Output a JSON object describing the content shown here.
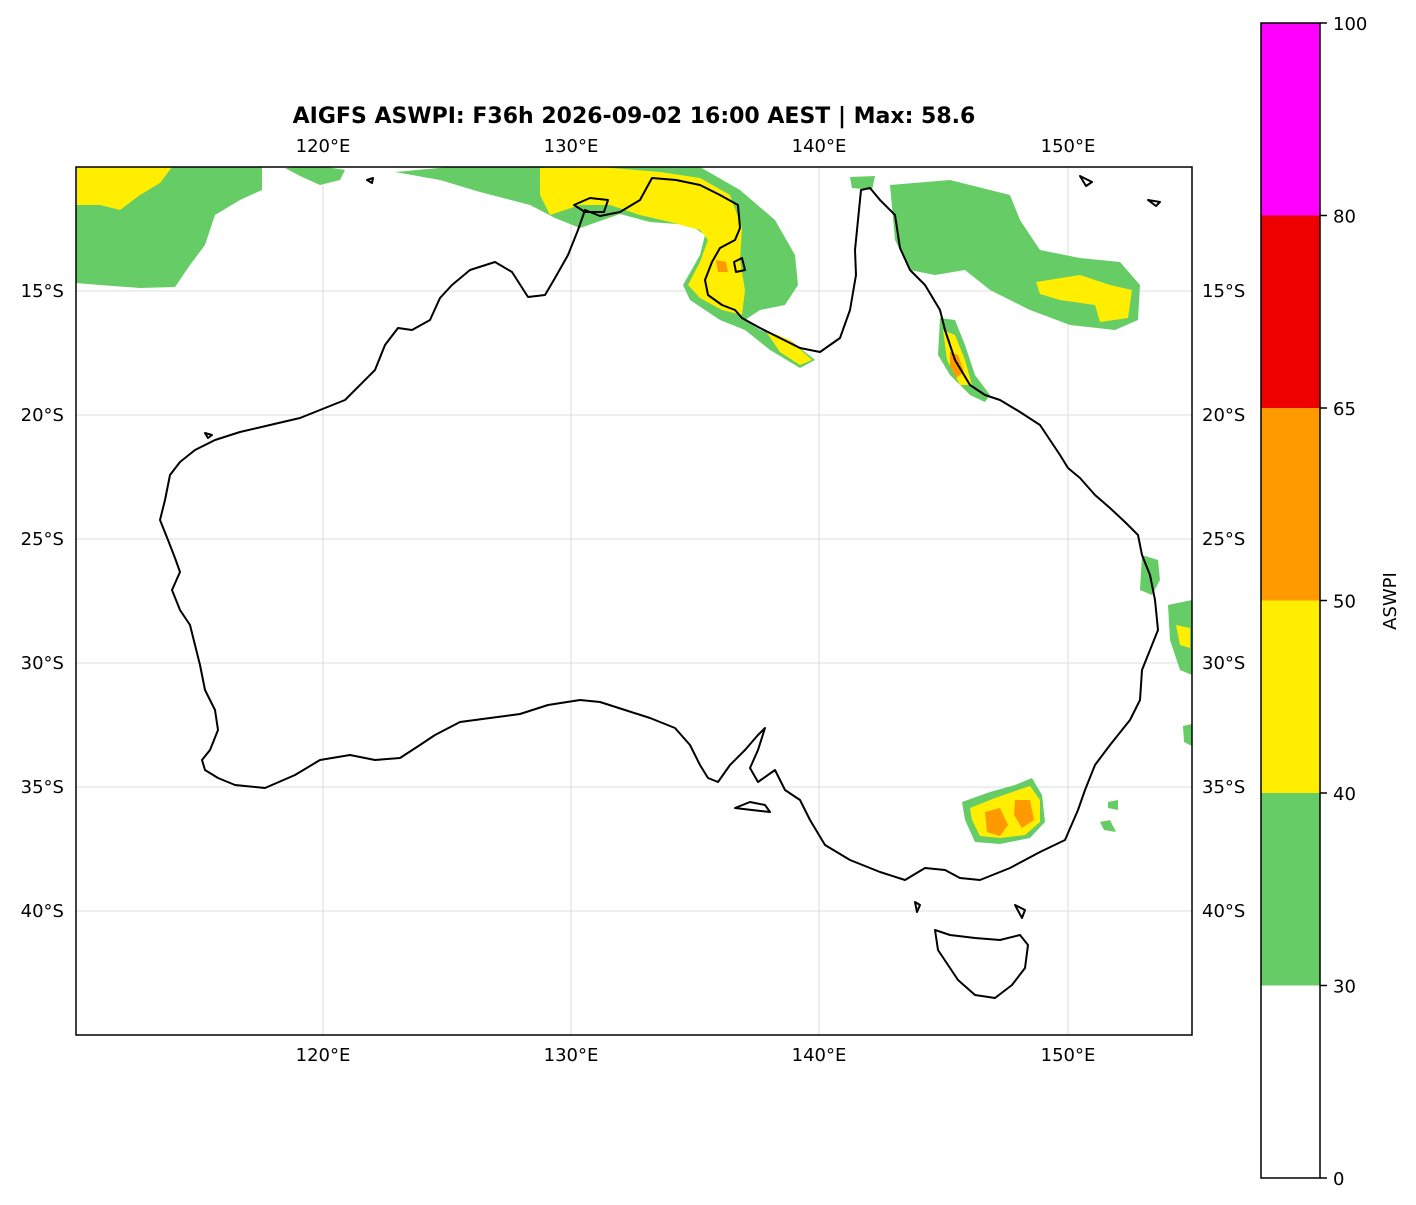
{
  "title": "AIGFS ASWPI: F36h 2026-09-02 16:00 AEST | Max: 58.6",
  "map": {
    "lon_ticks": [
      "120°E",
      "130°E",
      "140°E",
      "150°E"
    ],
    "lat_ticks": [
      "15°S",
      "20°S",
      "25°S",
      "30°S",
      "35°S",
      "40°S"
    ],
    "extent": {
      "lon": [
        110,
        155
      ],
      "lat": [
        -45,
        -10
      ]
    },
    "gridlines": true,
    "features": [
      "coastline",
      "ASWPI filled contours"
    ]
  },
  "colorbar": {
    "label": "ASWPI",
    "levels": [
      "0",
      "30",
      "40",
      "50",
      "65",
      "80",
      "100"
    ],
    "colors": [
      "#ffffff",
      "#66cc66",
      "#ffee00",
      "#ff9900",
      "#ee0000",
      "#ff00ff"
    ]
  }
}
